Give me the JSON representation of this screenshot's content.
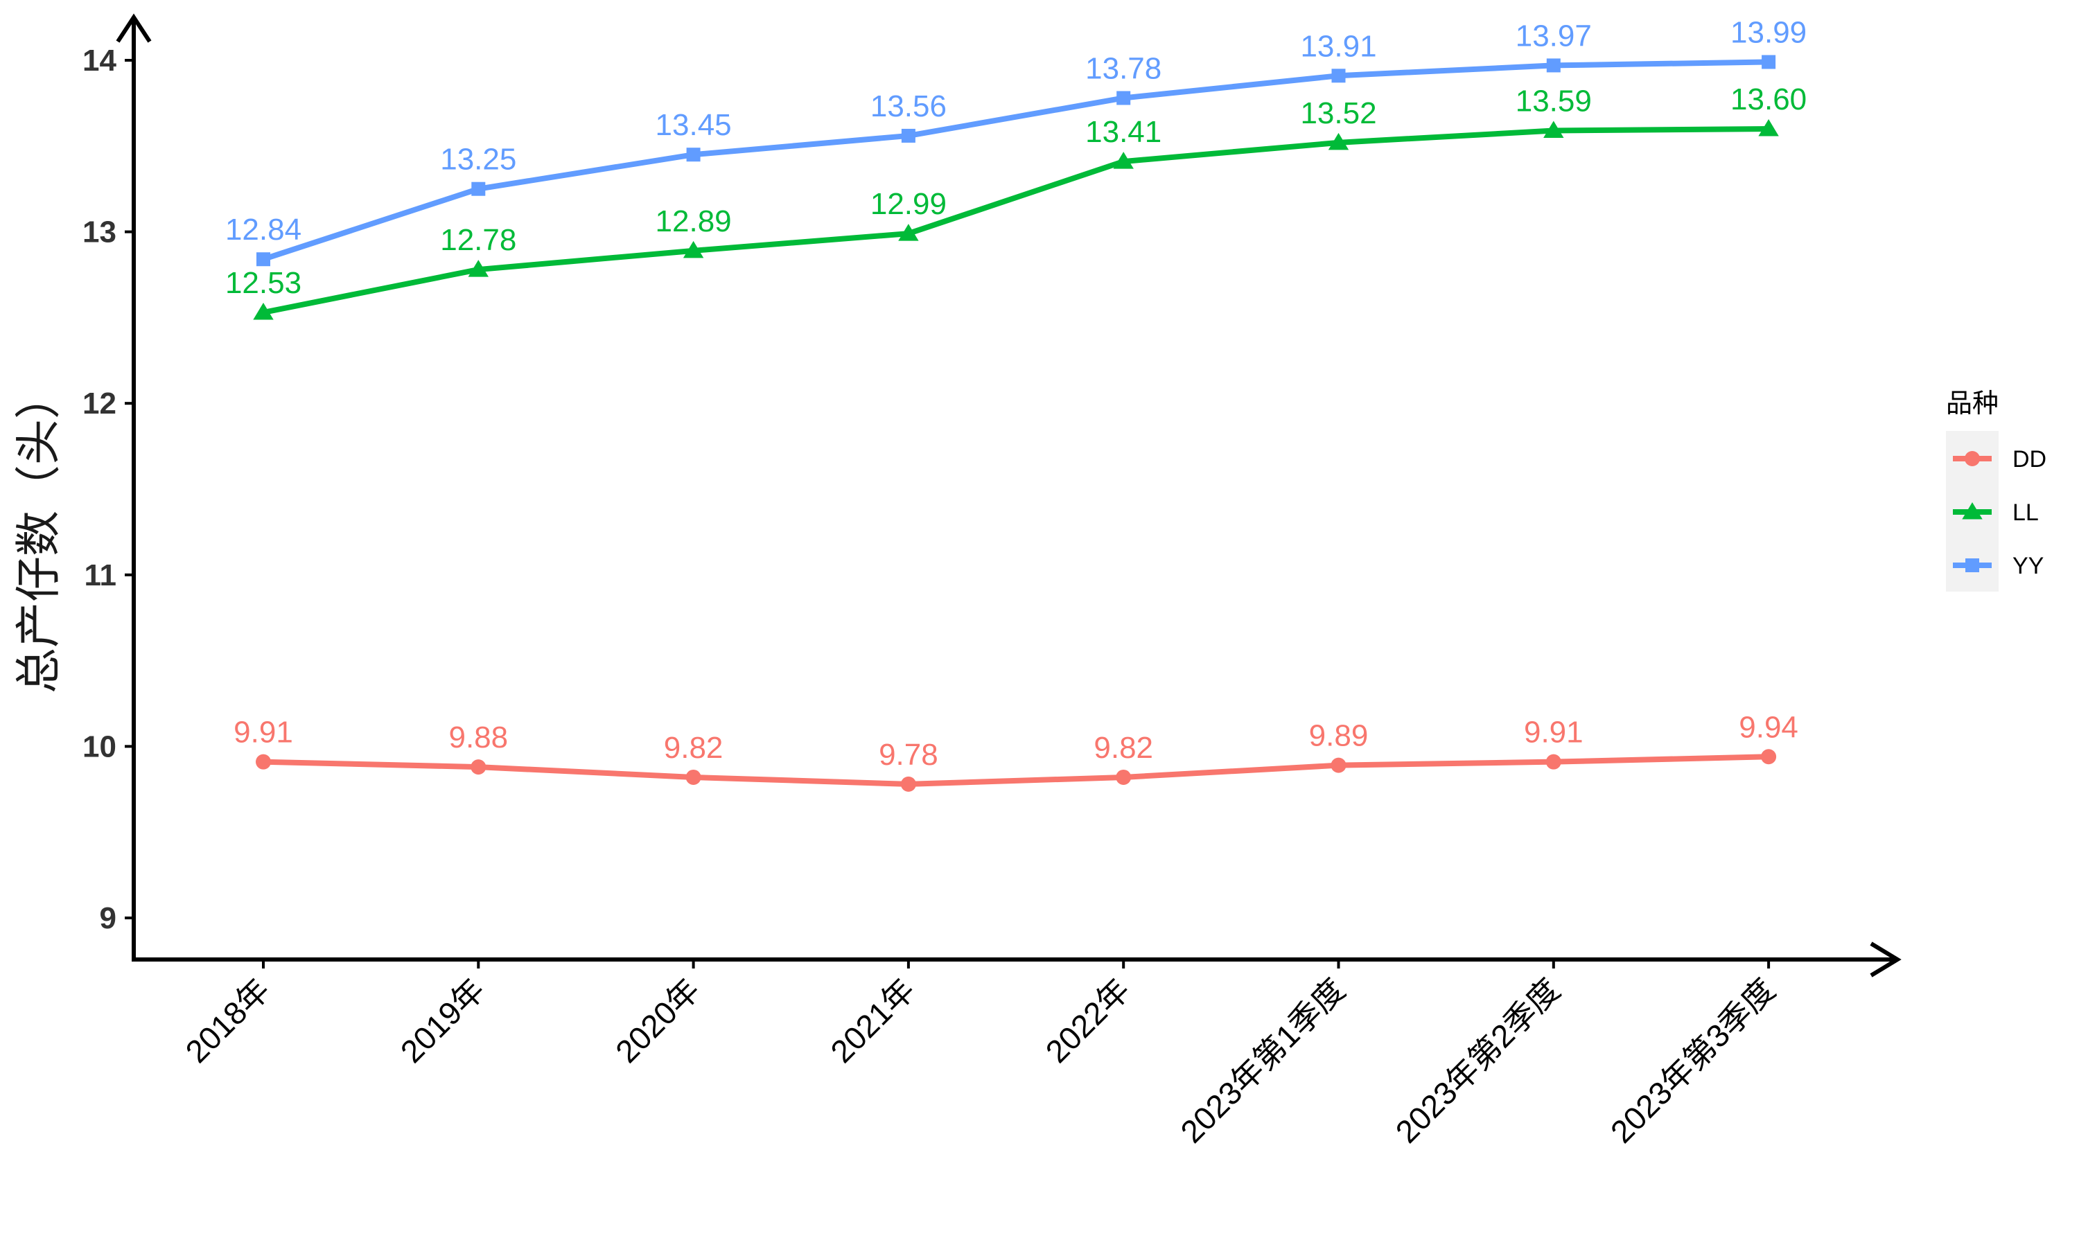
{
  "chart_data": {
    "type": "line",
    "title": "",
    "xlabel": "",
    "ylabel": "总产仔数（头）",
    "categories": [
      "2018年",
      "2019年",
      "2020年",
      "2021年",
      "2022年",
      "2023年第1季度",
      "2023年第2季度",
      "2023年第3季度"
    ],
    "ylim": [
      8.8,
      14.2
    ],
    "yticks": [
      9,
      10,
      11,
      12,
      13,
      14
    ],
    "grid": false,
    "legend": {
      "title": "品种",
      "position": "right"
    },
    "series": [
      {
        "name": "DD",
        "color": "#F8766D",
        "marker": "circle",
        "values": [
          9.91,
          9.88,
          9.82,
          9.78,
          9.82,
          9.89,
          9.91,
          9.94
        ],
        "labels": [
          "9.91",
          "9.88",
          "9.82",
          "9.78",
          "9.82",
          "9.89",
          "9.91",
          "9.94"
        ]
      },
      {
        "name": "LL",
        "color": "#00BA38",
        "marker": "triangle",
        "values": [
          12.53,
          12.78,
          12.89,
          12.99,
          13.41,
          13.52,
          13.59,
          13.6
        ],
        "labels": [
          "12.53",
          "12.78",
          "12.89",
          "12.99",
          "13.41",
          "13.52",
          "13.59",
          "13.60"
        ]
      },
      {
        "name": "YY",
        "color": "#619CFF",
        "marker": "square",
        "values": [
          12.84,
          13.25,
          13.45,
          13.56,
          13.78,
          13.91,
          13.97,
          13.99
        ],
        "labels": [
          "12.84",
          "13.25",
          "13.45",
          "13.56",
          "13.78",
          "13.91",
          "13.97",
          "13.99"
        ]
      }
    ]
  }
}
